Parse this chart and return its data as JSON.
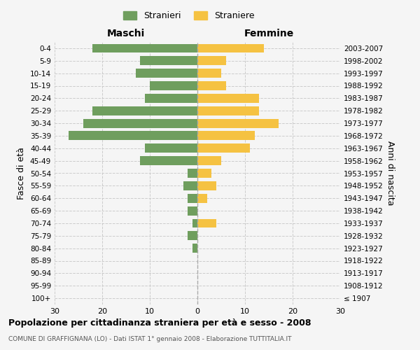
{
  "age_groups": [
    "100+",
    "95-99",
    "90-94",
    "85-89",
    "80-84",
    "75-79",
    "70-74",
    "65-69",
    "60-64",
    "55-59",
    "50-54",
    "45-49",
    "40-44",
    "35-39",
    "30-34",
    "25-29",
    "20-24",
    "15-19",
    "10-14",
    "5-9",
    "0-4"
  ],
  "birth_years": [
    "≤ 1907",
    "1908-1912",
    "1913-1917",
    "1918-1922",
    "1923-1927",
    "1928-1932",
    "1933-1937",
    "1938-1942",
    "1943-1947",
    "1948-1952",
    "1953-1957",
    "1958-1962",
    "1963-1967",
    "1968-1972",
    "1973-1977",
    "1978-1982",
    "1983-1987",
    "1988-1992",
    "1993-1997",
    "1998-2002",
    "2003-2007"
  ],
  "males": [
    0,
    0,
    0,
    0,
    1,
    2,
    1,
    2,
    2,
    3,
    2,
    12,
    11,
    27,
    24,
    22,
    11,
    10,
    13,
    12,
    22
  ],
  "females": [
    0,
    0,
    0,
    0,
    0,
    0,
    4,
    0,
    2,
    4,
    3,
    5,
    11,
    12,
    17,
    13,
    13,
    6,
    5,
    6,
    14
  ],
  "male_color": "#6f9e5e",
  "female_color": "#f5c242",
  "background_color": "#f5f5f5",
  "grid_color": "#cccccc",
  "title": "Popolazione per cittadinanza straniera per età e sesso - 2008",
  "subtitle": "COMUNE DI GRAFFIGNANA (LO) - Dati ISTAT 1° gennaio 2008 - Elaborazione TUTTITALIA.IT",
  "ylabel_left": "Fasce di età",
  "ylabel_right": "Anni di nascita",
  "xlabel_left": "Maschi",
  "xlabel_right": "Femmine",
  "legend_stranieri": "Stranieri",
  "legend_straniere": "Straniere",
  "xlim": 30,
  "bar_height": 0.72
}
